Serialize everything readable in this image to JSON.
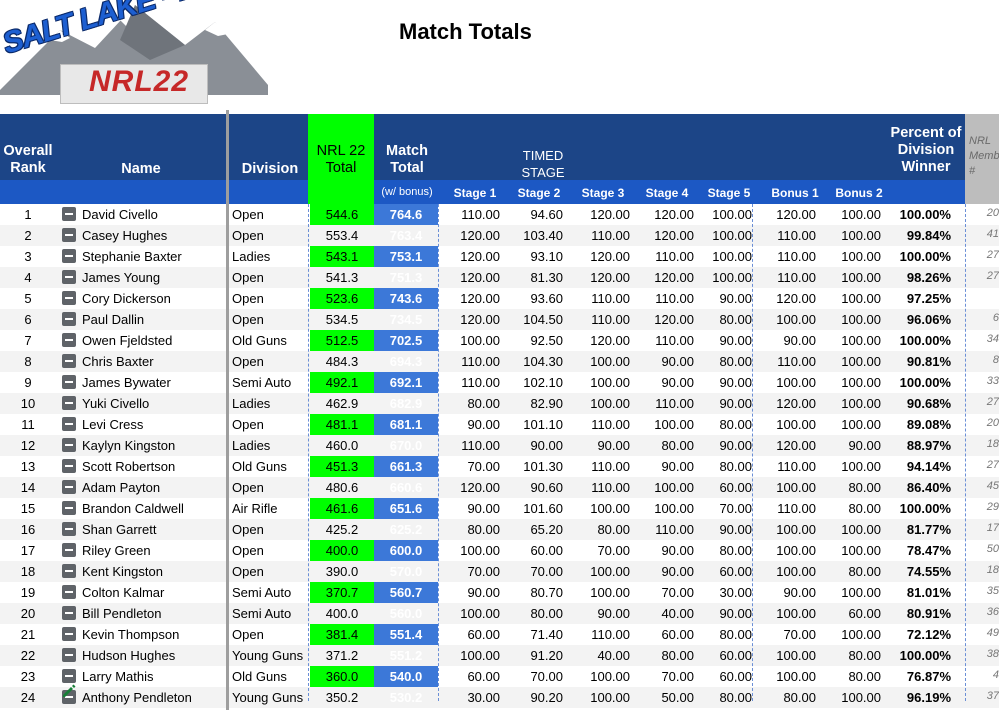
{
  "page": {
    "title": "Match Totals"
  },
  "logo": {
    "line1": "SALT LAKE - BIG SALTY",
    "mark": "NRL22"
  },
  "header": {
    "overall_rank": "Overall\nRank",
    "name": "Name",
    "division": "Division",
    "nrl22_total": "NRL 22\nTotal",
    "match_total": "Match\nTotal",
    "timed_stage": "TIMED\nSTAGE",
    "percent_winner": "Percent of\nDivision\nWinner",
    "nrl_member": "NRL\nMemb\n#"
  },
  "subheader": {
    "w_bonus": "(w/ bonus)",
    "stage1": "Stage 1",
    "stage2": "Stage 2",
    "stage3": "Stage 3",
    "stage4": "Stage 4",
    "stage5": "Stage 5",
    "bonus1": "Bonus 1",
    "bonus2": "Bonus 2"
  },
  "colors": {
    "header_dark": "#1c4587",
    "header_blue": "#1c58c4",
    "nrl_green": "#00ff00",
    "match_blue": "#3c78d8"
  },
  "rows": [
    [
      "1",
      "David Civello",
      "Open",
      "544.6",
      "764.6",
      "110.00",
      "94.60",
      "120.00",
      "120.00",
      "100.00",
      "120.00",
      "100.00",
      "100.00%",
      "20"
    ],
    [
      "2",
      "Casey Hughes",
      "Open",
      "553.4",
      "763.4",
      "120.00",
      "103.40",
      "110.00",
      "120.00",
      "100.00",
      "110.00",
      "100.00",
      "99.84%",
      "41"
    ],
    [
      "3",
      "Stephanie Baxter",
      "Ladies",
      "543.1",
      "753.1",
      "120.00",
      "93.10",
      "120.00",
      "110.00",
      "100.00",
      "110.00",
      "100.00",
      "100.00%",
      "27"
    ],
    [
      "4",
      "James Young",
      "Open",
      "541.3",
      "751.3",
      "120.00",
      "81.30",
      "120.00",
      "120.00",
      "100.00",
      "110.00",
      "100.00",
      "98.26%",
      "27"
    ],
    [
      "5",
      "Cory Dickerson",
      "Open",
      "523.6",
      "743.6",
      "120.00",
      "93.60",
      "110.00",
      "110.00",
      "90.00",
      "120.00",
      "100.00",
      "97.25%",
      ""
    ],
    [
      "6",
      "Paul Dallin",
      "Open",
      "534.5",
      "734.5",
      "120.00",
      "104.50",
      "110.00",
      "120.00",
      "80.00",
      "100.00",
      "100.00",
      "96.06%",
      "6"
    ],
    [
      "7",
      "Owen Fjeldsted",
      "Old Guns",
      "512.5",
      "702.5",
      "100.00",
      "92.50",
      "120.00",
      "110.00",
      "90.00",
      "90.00",
      "100.00",
      "100.00%",
      "34"
    ],
    [
      "8",
      "Chris Baxter",
      "Open",
      "484.3",
      "694.3",
      "110.00",
      "104.30",
      "100.00",
      "90.00",
      "80.00",
      "110.00",
      "100.00",
      "90.81%",
      "8"
    ],
    [
      "9",
      "James Bywater",
      "Semi Auto",
      "492.1",
      "692.1",
      "110.00",
      "102.10",
      "100.00",
      "90.00",
      "90.00",
      "100.00",
      "100.00",
      "100.00%",
      "33"
    ],
    [
      "10",
      "Yuki Civello",
      "Ladies",
      "462.9",
      "682.9",
      "80.00",
      "82.90",
      "100.00",
      "110.00",
      "90.00",
      "120.00",
      "100.00",
      "90.68%",
      "27"
    ],
    [
      "11",
      "Levi Cress",
      "Open",
      "481.1",
      "681.1",
      "90.00",
      "101.10",
      "110.00",
      "100.00",
      "80.00",
      "100.00",
      "100.00",
      "89.08%",
      "20"
    ],
    [
      "12",
      "Kaylyn Kingston",
      "Ladies",
      "460.0",
      "670.0",
      "110.00",
      "90.00",
      "90.00",
      "80.00",
      "90.00",
      "120.00",
      "90.00",
      "88.97%",
      "18"
    ],
    [
      "13",
      "Scott Robertson",
      "Old Guns",
      "451.3",
      "661.3",
      "70.00",
      "101.30",
      "110.00",
      "90.00",
      "80.00",
      "110.00",
      "100.00",
      "94.14%",
      "27"
    ],
    [
      "14",
      "Adam Payton",
      "Open",
      "480.6",
      "660.6",
      "120.00",
      "90.60",
      "110.00",
      "100.00",
      "60.00",
      "100.00",
      "80.00",
      "86.40%",
      "45"
    ],
    [
      "15",
      "Brandon Caldwell",
      "Air Rifle",
      "461.6",
      "651.6",
      "90.00",
      "101.60",
      "100.00",
      "100.00",
      "70.00",
      "110.00",
      "80.00",
      "100.00%",
      "29"
    ],
    [
      "16",
      "Shan Garrett",
      "Open",
      "425.2",
      "625.2",
      "80.00",
      "65.20",
      "80.00",
      "110.00",
      "90.00",
      "100.00",
      "100.00",
      "81.77%",
      "17"
    ],
    [
      "17",
      "Riley Green",
      "Open",
      "400.0",
      "600.0",
      "100.00",
      "60.00",
      "70.00",
      "90.00",
      "80.00",
      "100.00",
      "100.00",
      "78.47%",
      "50"
    ],
    [
      "18",
      "Kent Kingston",
      "Open",
      "390.0",
      "570.0",
      "70.00",
      "70.00",
      "100.00",
      "90.00",
      "60.00",
      "100.00",
      "80.00",
      "74.55%",
      "18"
    ],
    [
      "19",
      "Colton Kalmar",
      "Semi Auto",
      "370.7",
      "560.7",
      "90.00",
      "80.70",
      "100.00",
      "70.00",
      "30.00",
      "90.00",
      "100.00",
      "81.01%",
      "35"
    ],
    [
      "20",
      "Bill Pendleton",
      "Semi Auto",
      "400.0",
      "560.0",
      "100.00",
      "80.00",
      "90.00",
      "40.00",
      "90.00",
      "100.00",
      "60.00",
      "80.91%",
      "36"
    ],
    [
      "21",
      "Kevin Thompson",
      "Open",
      "381.4",
      "551.4",
      "60.00",
      "71.40",
      "110.00",
      "60.00",
      "80.00",
      "70.00",
      "100.00",
      "72.12%",
      "49"
    ],
    [
      "22",
      "Hudson Hughes",
      "Young Guns",
      "371.2",
      "551.2",
      "100.00",
      "91.20",
      "40.00",
      "80.00",
      "60.00",
      "100.00",
      "80.00",
      "100.00%",
      "38"
    ],
    [
      "23",
      "Larry Mathis",
      "Old Guns",
      "360.0",
      "540.0",
      "60.00",
      "70.00",
      "100.00",
      "70.00",
      "60.00",
      "100.00",
      "80.00",
      "76.87%",
      "4"
    ],
    [
      "24",
      "Anthony Pendleton",
      "Young Guns",
      "350.2",
      "530.2",
      "30.00",
      "90.20",
      "100.00",
      "50.00",
      "80.00",
      "80.00",
      "100.00",
      "96.19%",
      "37"
    ]
  ]
}
